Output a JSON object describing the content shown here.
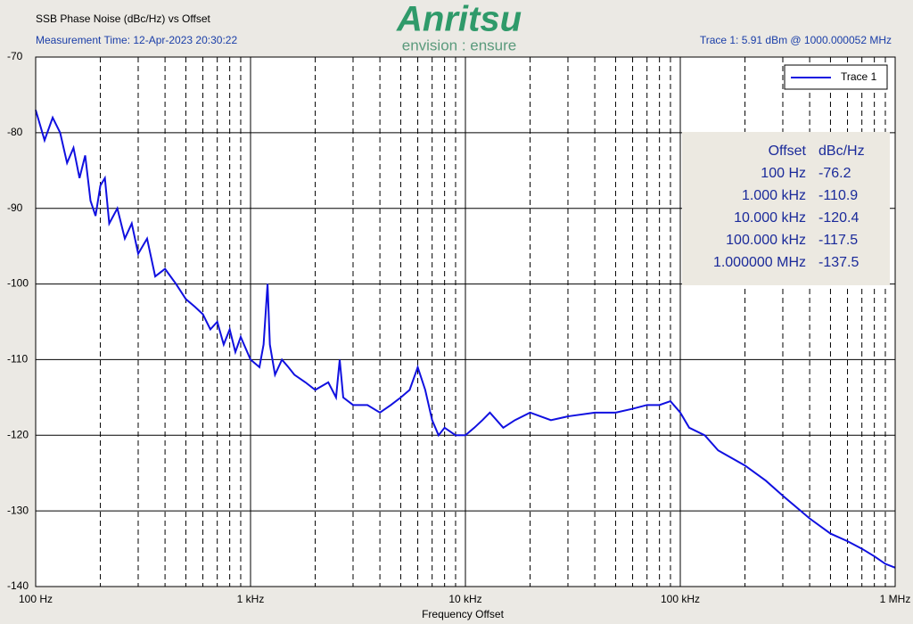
{
  "logo": {
    "brand": "Anritsu",
    "tagline": "envision : ensure"
  },
  "chart_data": {
    "type": "line",
    "title": "SSB Phase Noise (dBc/Hz) vs Offset",
    "subtitle": "Measurement Time: 12-Apr-2023 20:30:22",
    "trace_info": "Trace 1: 5.91 dBm @ 1000.000052 MHz",
    "x_label": "Frequency Offset",
    "x_log": true,
    "grid": true,
    "minor_grid": true,
    "legend_position": "upper right",
    "xlim": [
      100,
      1000000
    ],
    "ylim": [
      -140,
      -70
    ],
    "xticks": [
      {
        "value": 100,
        "label": "100 Hz"
      },
      {
        "value": 1000,
        "label": "1 kHz"
      },
      {
        "value": 10000,
        "label": "10 kHz"
      },
      {
        "value": 100000,
        "label": "100 kHz"
      },
      {
        "value": 1000000,
        "label": "1 MHz"
      }
    ],
    "yticks": [
      -70,
      -80,
      -90,
      -100,
      -110,
      -120,
      -130,
      -140
    ],
    "series": [
      {
        "name": "Trace 1",
        "color": "#1010e0",
        "x": [
          100,
          110,
          120,
          130,
          140,
          150,
          160,
          170,
          180,
          190,
          200,
          210,
          220,
          240,
          260,
          280,
          300,
          330,
          360,
          400,
          450,
          500,
          550,
          600,
          650,
          700,
          750,
          800,
          850,
          900,
          1000,
          1100,
          1150,
          1200,
          1230,
          1300,
          1400,
          1500,
          1600,
          1800,
          2000,
          2300,
          2500,
          2600,
          2700,
          3000,
          3500,
          4000,
          4500,
          5000,
          5500,
          6000,
          6500,
          7000,
          7500,
          8000,
          9000,
          10000,
          11000,
          12000,
          13000,
          15000,
          17000,
          20000,
          25000,
          30000,
          40000,
          50000,
          60000,
          70000,
          80000,
          90000,
          100000,
          110000,
          130000,
          150000,
          200000,
          250000,
          300000,
          400000,
          500000,
          600000,
          700000,
          800000,
          900000,
          1000000
        ],
        "values": [
          -77,
          -81,
          -78,
          -80,
          -84,
          -82,
          -86,
          -83,
          -89,
          -91,
          -87,
          -86,
          -92,
          -90,
          -94,
          -92,
          -96,
          -94,
          -99,
          -98,
          -100,
          -102,
          -103,
          -104,
          -106,
          -105,
          -108,
          -106,
          -109,
          -107,
          -110,
          -111,
          -108,
          -100,
          -108,
          -112,
          -110,
          -111,
          -112,
          -113,
          -114,
          -113,
          -115,
          -110,
          -115,
          -116,
          -116,
          -117,
          -116,
          -115,
          -114,
          -111,
          -114,
          -118,
          -120,
          -119,
          -120,
          -120,
          -119,
          -118,
          -117,
          -119,
          -118,
          -117,
          -118,
          -117.5,
          -117,
          -117,
          -116.5,
          -116,
          -116,
          -115.5,
          -117,
          -119,
          -120,
          -122,
          -124,
          -126,
          -128,
          -131,
          -133,
          -134,
          -135,
          -136,
          -137,
          -137.5
        ]
      }
    ],
    "marker_table": {
      "columns": [
        "Offset",
        "dBc/Hz"
      ],
      "rows": [
        [
          "100 Hz",
          "-76.2"
        ],
        [
          "1.000 kHz",
          "-110.9"
        ],
        [
          "10.000 kHz",
          "-120.4"
        ],
        [
          "100.000 kHz",
          "-117.5"
        ],
        [
          "1.000000 MHz",
          "-137.5"
        ]
      ]
    }
  }
}
